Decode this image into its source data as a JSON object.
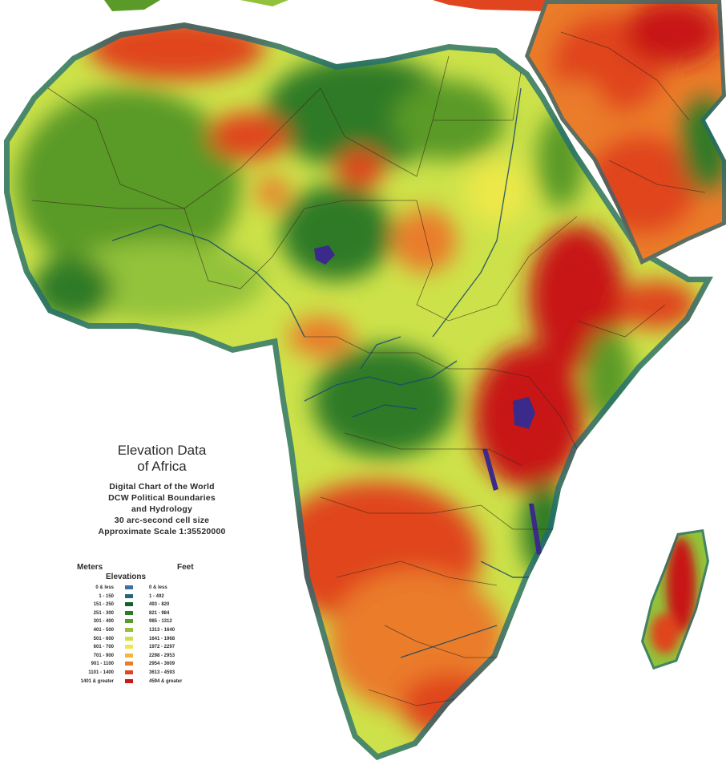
{
  "legend": {
    "title_line1": "Elevation Data",
    "title_line2": "of Africa",
    "subtitle_lines": [
      "Digital Chart of the World",
      "DCW Political Boundaries",
      "and Hydrology",
      "30 arc-second cell size",
      "Approximate Scale 1:35520000"
    ],
    "meters_label": "Meters",
    "feet_label": "Feet",
    "elevations_label": "Elevations",
    "rows": [
      {
        "meters": "0 & less",
        "feet": "0 & less",
        "color": "#3f6fa8"
      },
      {
        "meters": "1 - 150",
        "feet": "1 - 492",
        "color": "#1f6a78"
      },
      {
        "meters": "151 - 250",
        "feet": "493 - 820",
        "color": "#17602e"
      },
      {
        "meters": "251 - 300",
        "feet": "821 - 984",
        "color": "#2f7a26"
      },
      {
        "meters": "301 - 400",
        "feet": "985 - 1312",
        "color": "#5a9a28"
      },
      {
        "meters": "401 - 500",
        "feet": "1313 - 1640",
        "color": "#93c23a"
      },
      {
        "meters": "501 - 600",
        "feet": "1641 - 1968",
        "color": "#cde24a"
      },
      {
        "meters": "601 - 700",
        "feet": "1972 - 2297",
        "color": "#ece84a"
      },
      {
        "meters": "701 - 900",
        "feet": "2298 - 2953",
        "color": "#f2b83a"
      },
      {
        "meters": "901 - 1100",
        "feet": "2954 - 3609",
        "color": "#ea7c2a"
      },
      {
        "meters": "1101 - 1400",
        "feet": "3613 - 4593",
        "color": "#e0451f"
      },
      {
        "meters": "1401 & greater",
        "feet": "4594 & greater",
        "color": "#c81818"
      }
    ]
  },
  "colors": {
    "sea": "#ffffff",
    "border_lines": "#3a2a20",
    "rivers": "#1c4a6a",
    "lakes": "#3b2a8a"
  }
}
